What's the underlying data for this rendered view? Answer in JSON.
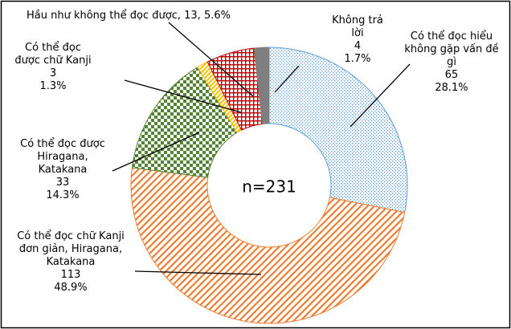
{
  "chart_data": {
    "type": "donut",
    "center_label": "n=231",
    "categories": [
      "Có thể đọc hiểu không gặp vấn đề gì",
      "Có thể đọc chữ Kanji đơn giản, Hiragana, Katakana",
      "Có thể đọc được Hiragana, Katakana",
      "Có thể đọc được chữ Kanji",
      "Hầu như không thể đọc được",
      "Không trả lời"
    ],
    "values": [
      65,
      113,
      33,
      3,
      13,
      4
    ],
    "value_labels": [
      "28.1%",
      "48.9%",
      "14.3%",
      "1.3%",
      "5.6%",
      "1.7%"
    ],
    "colors": [
      "#5b9bd5",
      "#ed7d31",
      "#548235",
      "#ffc000",
      "#c00000",
      "#7f7f7f"
    ]
  }
}
